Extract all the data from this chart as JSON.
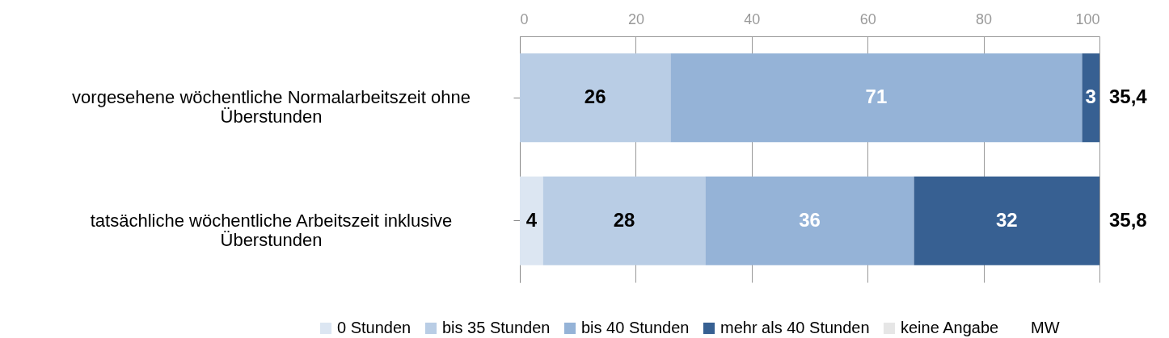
{
  "chart_data": {
    "type": "bar",
    "orientation": "horizontal",
    "stacked": true,
    "categories": [
      "vorgesehene wöchentliche Normalarbeitszeit ohne Überstunden",
      "tatsächliche wöchentliche Arbeitszeit inklusive Überstunden"
    ],
    "series": [
      {
        "name": "0 Stunden",
        "color": "#dce6f2",
        "values": [
          0,
          4
        ],
        "value_labels": [
          null,
          "4"
        ]
      },
      {
        "name": "bis 35 Stunden",
        "color": "#b9cde5",
        "values": [
          26,
          28
        ],
        "value_labels": [
          "26",
          "28"
        ]
      },
      {
        "name": "bis 40 Stunden",
        "color": "#95b3d7",
        "values": [
          71,
          36
        ],
        "value_labels": [
          "71",
          "36"
        ]
      },
      {
        "name": "mehr als 40 Stunden",
        "color": "#376092",
        "values": [
          3,
          32
        ],
        "value_labels": [
          "3",
          "32"
        ]
      },
      {
        "name": "keine Angabe",
        "color": "#e6e6e6",
        "values": [
          0,
          0
        ],
        "value_labels": [
          null,
          null
        ]
      }
    ],
    "xlim": [
      0,
      100
    ],
    "xticks": [
      0,
      20,
      40,
      60,
      80,
      100
    ],
    "grid": "x",
    "legend": "bottom",
    "annotations": [
      "MW",
      "35,4",
      "35,8"
    ]
  }
}
